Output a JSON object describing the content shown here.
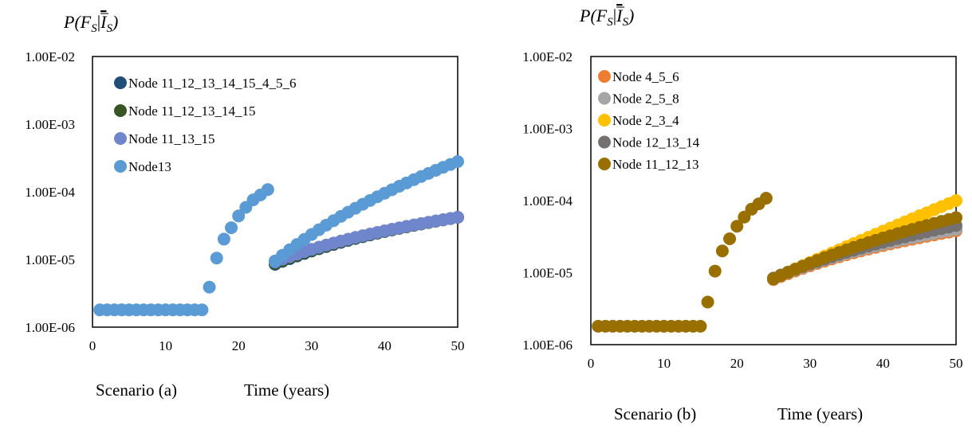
{
  "chart_data": [
    {
      "type": "scatter",
      "ylabel": "P(F_S|Ī_S)",
      "ylabel_parts": {
        "p": "P(",
        "f": "F",
        "fs": "S",
        "bar": "|",
        "i": "I",
        "is": "S",
        "close": ")"
      },
      "y_scale": "log",
      "ylim": [
        1e-06,
        0.01
      ],
      "y_ticks": [
        "1.00E-02",
        "1.00E-03",
        "1.00E-04",
        "1.00E-05",
        "1.00E-06"
      ],
      "xlim": [
        0,
        50
      ],
      "x_ticks": [
        "0",
        "10",
        "20",
        "30",
        "40",
        "50"
      ],
      "scenario": "Scenario (a)",
      "xlabel": "Time (years)",
      "legend_position": "top-left",
      "series": [
        {
          "name": "Node 11_12_13_14_15_4_5_6",
          "color": "#1f4e79",
          "early_mode": "none",
          "late_start": 8.5e-06,
          "late_end": 4.2e-05,
          "late_curv": 0.45
        },
        {
          "name": "Node 11_12_13_14_15",
          "color": "#375623",
          "early_mode": "none",
          "late_start": 8.8e-06,
          "late_end": 4.2e-05,
          "late_curv": 0.45
        },
        {
          "name": "Node 11_13_15",
          "color": "#7086cc",
          "early_mode": "none",
          "late_start": 9.2e-06,
          "late_end": 4.2e-05,
          "late_curv": 0.45
        },
        {
          "name": "Node13",
          "color": "#5b9bd5",
          "early_mode": "full",
          "late_start": 9.5e-06,
          "late_end": 0.00028,
          "late_curv": 0.5
        }
      ]
    },
    {
      "type": "scatter",
      "ylabel": "P(F_S|Ī_S)",
      "ylabel_parts": {
        "p": "P(",
        "f": "F",
        "fs": "S",
        "bar": "|",
        "i": "I",
        "is": "S",
        "close": ")"
      },
      "y_scale": "log",
      "ylim": [
        1e-06,
        0.01
      ],
      "y_ticks": [
        "1.00E-02",
        "1.00E-03",
        "1.00E-04",
        "1.00E-05",
        "1.00E-06"
      ],
      "xlim": [
        0,
        50
      ],
      "x_ticks": [
        "0",
        "10",
        "20",
        "30",
        "40",
        "50"
      ],
      "scenario": "Scenario (b)",
      "xlabel": "Time (years)",
      "legend_position": "top-left",
      "series": [
        {
          "name": "Node 4_5_6",
          "color": "#ed7d31",
          "early_mode": "none",
          "late_start": 8e-06,
          "late_end": 3.8e-05,
          "late_curv": 0.45
        },
        {
          "name": "Node 2_5_8",
          "color": "#a5a5a5",
          "early_mode": "none",
          "late_start": 8.2e-06,
          "late_end": 4e-05,
          "late_curv": 0.45
        },
        {
          "name": "Node 2_3_4",
          "color": "#ffc000",
          "early_mode": "none",
          "late_start": 8.3e-06,
          "late_end": 0.0001,
          "late_curv": 0.85
        },
        {
          "name": "Node 12_13_14",
          "color": "#767171",
          "early_mode": "none",
          "late_start": 8.4e-06,
          "late_end": 4.5e-05,
          "late_curv": 0.5
        },
        {
          "name": "Node 11_12_13",
          "color": "#996f00",
          "early_mode": "full",
          "late_start": 8.2e-06,
          "late_end": 5.8e-05,
          "late_curv": 0.55
        }
      ]
    }
  ]
}
